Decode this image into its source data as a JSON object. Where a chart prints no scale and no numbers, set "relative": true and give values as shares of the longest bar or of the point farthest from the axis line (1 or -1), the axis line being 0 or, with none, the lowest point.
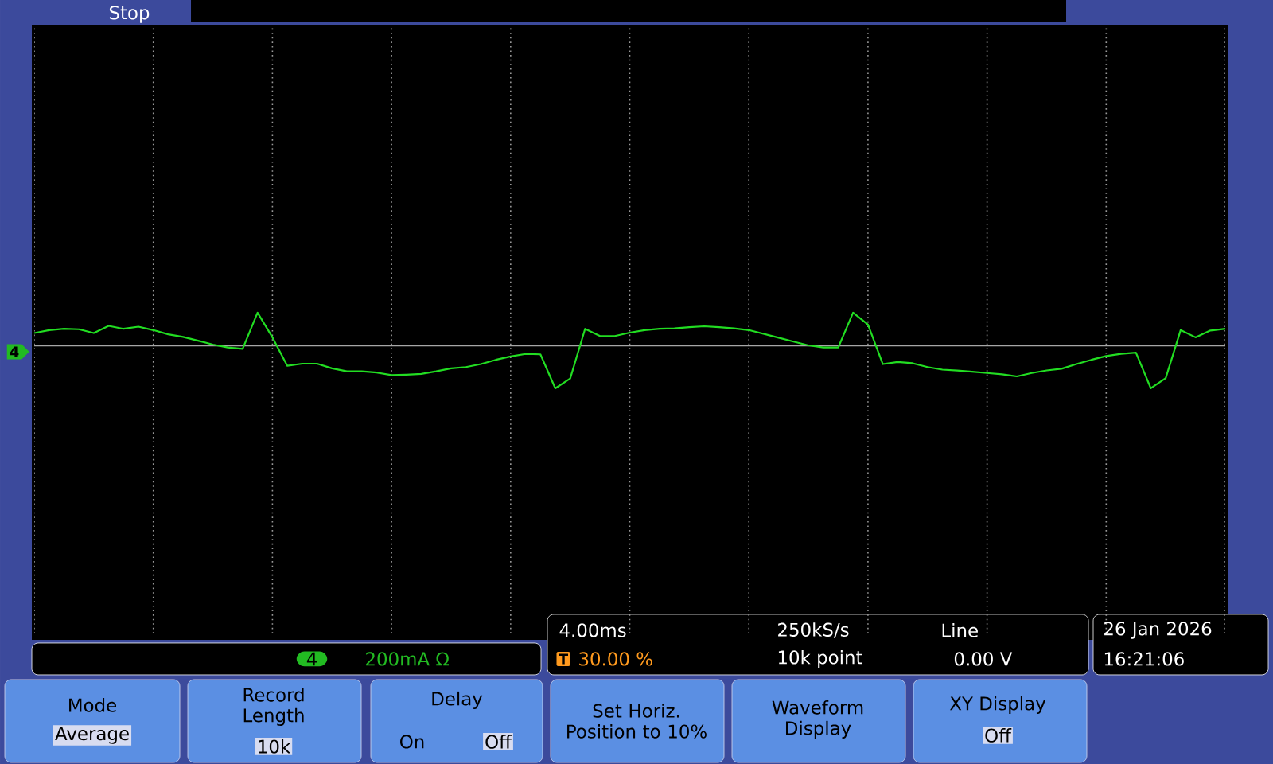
{
  "chart_data": {
    "type": "line",
    "relative": true,
    "grid": "x",
    "marker": "none",
    "line_style": "solid",
    "categories": [
      null,
      null,
      null,
      null,
      null,
      null,
      null,
      null,
      null,
      null,
      null,
      null,
      null,
      null,
      null,
      null,
      null,
      null,
      null,
      null,
      null,
      null,
      null,
      null,
      null,
      null,
      null,
      null,
      null,
      null,
      null,
      null,
      null,
      null,
      null,
      null,
      null,
      null,
      null,
      null,
      null,
      null,
      null,
      null,
      null,
      null,
      null,
      null,
      null,
      null,
      null,
      null,
      null,
      null,
      null,
      null,
      null,
      null,
      null,
      null,
      null,
      null,
      null,
      null,
      null,
      null,
      null,
      null,
      null,
      null,
      null,
      null,
      null,
      null,
      null,
      null,
      null,
      null,
      null,
      null,
      null
    ],
    "series": [
      {
        "color": "#22dd22",
        "values": [
          0.3,
          0.37,
          0.4,
          0.39,
          0.3,
          0.47,
          0.4,
          0.45,
          0.37,
          0.27,
          0.21,
          0.12,
          0.03,
          -0.04,
          -0.07,
          0.78,
          0.2,
          -0.47,
          -0.42,
          -0.42,
          -0.53,
          -0.6,
          -0.6,
          -0.63,
          -0.69,
          -0.68,
          -0.66,
          -0.6,
          -0.53,
          -0.5,
          -0.43,
          -0.33,
          -0.25,
          -0.19,
          -0.2,
          -1,
          -0.77,
          0.4,
          0.23,
          0.23,
          0.31,
          0.37,
          0.4,
          0.41,
          0.44,
          0.46,
          0.44,
          0.41,
          0.37,
          0.28,
          0.19,
          0.1,
          0.01,
          -0.04,
          -0.04,
          0.78,
          0.5,
          -0.43,
          -0.38,
          -0.41,
          -0.5,
          -0.56,
          -0.58,
          -0.61,
          -0.64,
          -0.67,
          -0.72,
          -0.64,
          -0.58,
          -0.54,
          -0.43,
          -0.33,
          -0.24,
          -0.19,
          -0.16,
          -1,
          -0.76,
          0.37,
          0.2,
          0.36,
          0.4
        ]
      }
    ],
    "annotations": [
      "Stop",
      "4",
      "4",
      "200mA Ω",
      "4.00ms",
      "250kS/s",
      "Line",
      "30.00 %",
      "10k point",
      "0.00 V",
      "26 Jan 2026",
      "16:21:06",
      "Mode",
      "Average",
      "Record Length",
      "10k",
      "Delay",
      "On",
      "Off",
      "Set Horiz. Position to 10%",
      "Waveform Display",
      "XY Display",
      "Off",
      "T"
    ]
  }
}
